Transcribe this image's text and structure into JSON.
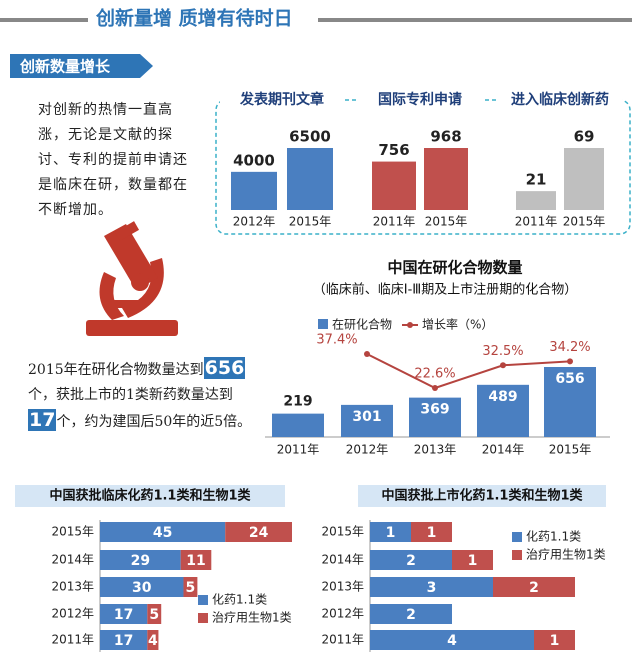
{
  "header": {
    "title": "创新量增 质增有待时日"
  },
  "section": {
    "title": "创新数量增长"
  },
  "intro": "对创新的热情一直高涨，无论是文献的探讨、专利的提前申请还是临床在研，数量都在不断增加。",
  "note": {
    "parts": [
      "2015年在研化合物数量达到",
      "656",
      "个，获批上市的1类新药数量达到",
      "17",
      "个，约为建国后50年的近5倍。"
    ]
  },
  "chart_data": [
    {
      "type": "bar",
      "title": "发表期刊文章",
      "categories": [
        "2012年",
        "2015年"
      ],
      "values": [
        4000,
        6500
      ],
      "color": "#4a7fc1"
    },
    {
      "type": "bar",
      "title": "国际专利申请",
      "categories": [
        "2011年",
        "2015年"
      ],
      "values": [
        756,
        968
      ],
      "color": "#c0504d"
    },
    {
      "type": "bar",
      "title": "进入临床创新药",
      "categories": [
        "2011年",
        "2015年"
      ],
      "values": [
        21,
        69
      ],
      "color": "#bfbfbf"
    },
    {
      "type": "combo",
      "title": "中国在研化合物数量",
      "subtitle": "（临床前、临床Ⅰ-Ⅲ期及上市注册期的化合物）",
      "categories": [
        "2011年",
        "2012年",
        "2013年",
        "2014年",
        "2015年"
      ],
      "series": [
        {
          "name": "在研化合物",
          "type": "bar",
          "color": "#4a7fc1",
          "values": [
            219,
            301,
            369,
            489,
            656
          ]
        },
        {
          "name": "增长率（%）",
          "type": "line",
          "axis": "y2",
          "color": "#b5443f",
          "values": [
            null,
            37.4,
            22.6,
            32.5,
            34.2
          ],
          "value_labels": [
            null,
            "37.4%",
            "22.6%",
            "32.5%",
            "34.2%"
          ]
        }
      ]
    },
    {
      "type": "stacked-barh",
      "title": "中国获批临床化药1.1类和生物1类",
      "categories": [
        "2015年",
        "2014年",
        "2013年",
        "2012年",
        "2011年"
      ],
      "series": [
        {
          "name": "化药1.1类",
          "color": "#4a7fc1",
          "values": [
            45,
            29,
            30,
            17,
            17
          ]
        },
        {
          "name": "治疗用生物1类",
          "color": "#c0504d",
          "values": [
            24,
            11,
            5,
            5,
            4
          ]
        }
      ]
    },
    {
      "type": "stacked-barh",
      "title": "中国获批上市化药1.1类和生物1类",
      "categories": [
        "2015年",
        "2014年",
        "2013年",
        "2012年",
        "2011年"
      ],
      "series": [
        {
          "name": "化药1.1类",
          "color": "#4a7fc1",
          "values": [
            1,
            2,
            3,
            2,
            4
          ]
        },
        {
          "name": "治疗用生物1类",
          "color": "#c0504d",
          "values": [
            1,
            1,
            2,
            null,
            1
          ]
        }
      ]
    }
  ]
}
